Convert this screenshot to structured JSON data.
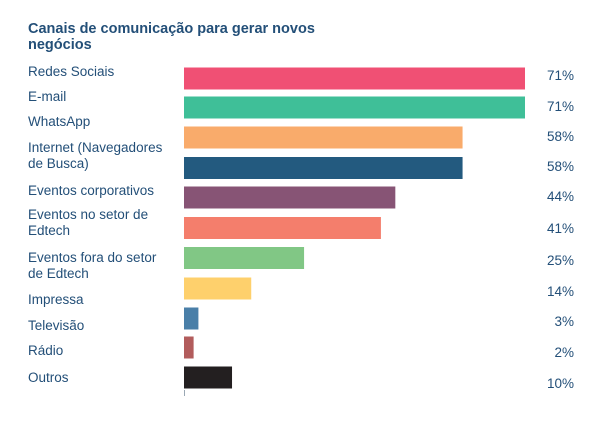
{
  "chart_data": {
    "type": "bar",
    "orientation": "horizontal",
    "title": "Canais de comunicação para gerar novos negócios",
    "categories": [
      [
        "Redes Sociais"
      ],
      [
        "E-mail"
      ],
      [
        "WhatsApp"
      ],
      [
        "Internet (Navegadores",
        "de Busca)"
      ],
      [
        "Eventos corporativos"
      ],
      [
        "Eventos no setor de",
        "Edtech"
      ],
      [
        "Eventos fora do setor",
        "de Edtech"
      ],
      [
        "Impressa"
      ],
      [
        "Televisão"
      ],
      [
        "Rádio"
      ],
      [
        "Outros"
      ]
    ],
    "values": [
      71,
      71,
      58,
      58,
      44,
      41,
      25,
      14,
      3,
      2,
      10
    ],
    "value_labels": [
      "71%",
      "71%",
      "58%",
      "58%",
      "44%",
      "41%",
      "25%",
      "14%",
      "3%",
      "2%",
      "10%"
    ],
    "colors": [
      "#f05074",
      "#3fbf98",
      "#f9ab6b",
      "#235a7f",
      "#875475",
      "#f47e6c",
      "#81c785",
      "#fed06c",
      "#4a7fa8",
      "#b25c5c",
      "#231f20"
    ],
    "xlim": [
      0,
      71
    ],
    "grid": false,
    "legend": "none"
  }
}
